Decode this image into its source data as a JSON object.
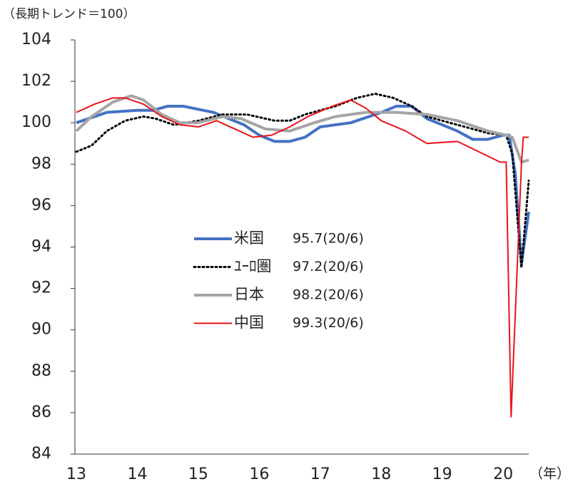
{
  "chart_data": {
    "type": "line",
    "y_axis_label": "（長期トレンド＝100）",
    "x_axis_label": "（年）",
    "xlim": [
      13,
      20.42
    ],
    "xticks": [
      13,
      14,
      15,
      16,
      17,
      18,
      19,
      20
    ],
    "ylim": [
      84,
      104
    ],
    "yticks": [
      84,
      86,
      88,
      90,
      92,
      94,
      96,
      98,
      100,
      102,
      104
    ],
    "series": [
      {
        "name": "米国",
        "legend_label": "95.7(20/6)",
        "color": "#4472c4",
        "width": 4,
        "dash": "solid",
        "x": [
          13,
          13.5,
          14,
          14.25,
          14.5,
          14.75,
          15.25,
          15.75,
          16,
          16.25,
          16.5,
          16.75,
          17,
          17.5,
          18,
          18.25,
          18.5,
          18.75,
          19.25,
          19.5,
          19.75,
          20,
          20.1,
          20.2,
          20.3,
          20.42
        ],
        "values": [
          100,
          100.5,
          100.6,
          100.6,
          100.8,
          100.8,
          100.5,
          99.9,
          99.4,
          99.1,
          99.1,
          99.3,
          99.8,
          100,
          100.5,
          100.8,
          100.8,
          100.2,
          99.6,
          99.2,
          99.2,
          99.4,
          99.4,
          97.5,
          93.2,
          95.7
        ]
      },
      {
        "name": "ﾕｰﾛ圏",
        "legend_label": "97.2(20/6)",
        "color": "#000000",
        "width": 3,
        "dash": "dotted",
        "x": [
          13,
          13.25,
          13.5,
          13.8,
          14.1,
          14.3,
          14.6,
          15,
          15.4,
          15.8,
          16.25,
          16.5,
          16.75,
          17.25,
          17.6,
          17.9,
          18.2,
          18.5,
          18.75,
          19.25,
          19.75,
          20.05,
          20.15,
          20.3,
          20.42
        ],
        "values": [
          98.6,
          98.9,
          99.6,
          100.1,
          100.3,
          100.2,
          99.9,
          100.1,
          100.4,
          100.4,
          100.1,
          100.1,
          100.4,
          100.8,
          101.2,
          101.4,
          101.2,
          100.8,
          100.3,
          99.9,
          99.5,
          99.4,
          98.5,
          93,
          97.2
        ]
      },
      {
        "name": "日本",
        "legend_label": "98.2(20/6)",
        "color": "#a5a5a5",
        "width": 4,
        "dash": "solid",
        "x": [
          13,
          13.25,
          13.6,
          13.9,
          14.1,
          14.4,
          14.7,
          15,
          15.4,
          15.7,
          16.1,
          16.5,
          16.9,
          17.25,
          17.75,
          18.25,
          18.75,
          19.25,
          19.75,
          20.05,
          20.15,
          20.3,
          20.42
        ],
        "values": [
          99.6,
          100.3,
          101,
          101.3,
          101.1,
          100.4,
          100,
          100,
          100.3,
          100.2,
          99.7,
          99.6,
          100,
          100.3,
          100.5,
          100.5,
          100.4,
          100.1,
          99.6,
          99.4,
          99.3,
          98.1,
          98.2
        ]
      },
      {
        "name": "中国",
        "legend_label": "99.3(20/6)",
        "color": "#e8141a",
        "width": 2,
        "dash": "solid",
        "x": [
          13,
          13.3,
          13.6,
          13.8,
          14.1,
          14.4,
          14.7,
          15,
          15.3,
          15.6,
          15.9,
          16.2,
          16.5,
          16.8,
          17.2,
          17.5,
          17.75,
          18,
          18.4,
          18.75,
          19.25,
          19.6,
          19.95,
          20.05,
          20.13,
          20.3,
          20.33,
          20.42
        ],
        "values": [
          100.5,
          100.9,
          101.2,
          101.2,
          100.9,
          100.3,
          99.9,
          99.8,
          100.1,
          99.7,
          99.3,
          99.4,
          99.8,
          100.3,
          100.8,
          101.1,
          100.7,
          100.1,
          99.6,
          99,
          99.1,
          98.6,
          98.1,
          98.1,
          85.8,
          98,
          99.3,
          99.3
        ]
      }
    ]
  }
}
